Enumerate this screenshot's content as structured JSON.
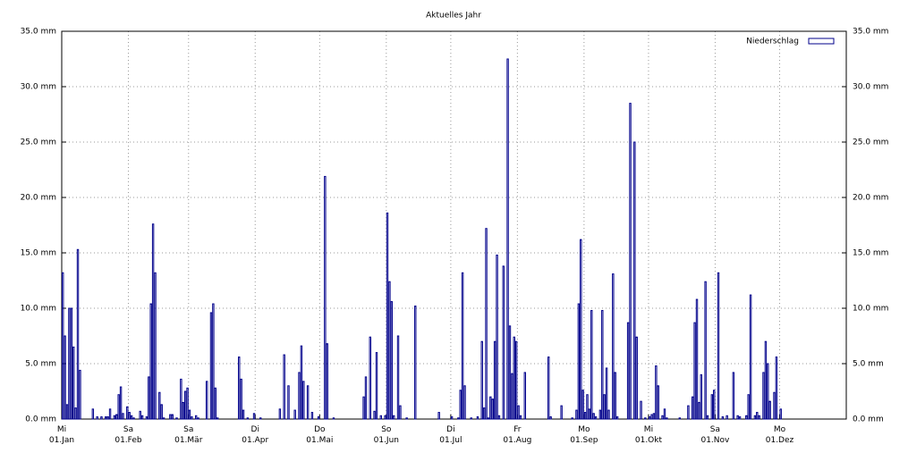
{
  "chart_data": {
    "type": "bar",
    "title": "Aktuelles Jahr",
    "xlim": [
      0,
      365
    ],
    "xticks": [
      {
        "value": 0,
        "label": "Mi\n01.Jan"
      },
      {
        "value": 31,
        "label": "Sa\n01.Feb"
      },
      {
        "value": 59,
        "label": "Sa\n01.Mär"
      },
      {
        "value": 90,
        "label": "Di\n01.Apr"
      },
      {
        "value": 120,
        "label": "Do\n01.Mai"
      },
      {
        "value": 151,
        "label": "So\n01.Jun"
      },
      {
        "value": 181,
        "label": "Di\n01.Jul"
      },
      {
        "value": 212,
        "label": "Fr\n01.Aug"
      },
      {
        "value": 243,
        "label": "Mo\n01.Sep"
      },
      {
        "value": 273,
        "label": "Mi\n01.Okt"
      },
      {
        "value": 304,
        "label": "Sa\n01.Nov"
      },
      {
        "value": 334,
        "label": "Mo\n01.Dez"
      }
    ],
    "ylim": [
      0,
      35
    ],
    "yticks": [
      {
        "value": 0,
        "label": "0.0 mm"
      },
      {
        "value": 5,
        "label": "5.0 mm"
      },
      {
        "value": 10,
        "label": "10.0 mm"
      },
      {
        "value": 15,
        "label": "15.0 mm"
      },
      {
        "value": 20,
        "label": "20.0 mm"
      },
      {
        "value": 25,
        "label": "25.0 mm"
      },
      {
        "value": 30,
        "label": "30.0 mm"
      },
      {
        "value": 35,
        "label": "35.0 mm"
      }
    ],
    "grid": true,
    "legend": "top-right",
    "x": [
      0,
      1,
      2,
      3,
      4,
      5,
      6,
      7,
      8,
      14,
      16,
      18,
      20,
      21,
      22,
      24,
      25,
      26,
      27,
      28,
      30,
      31,
      32,
      33,
      36,
      37,
      39,
      40,
      41,
      42,
      43,
      45,
      46,
      47,
      50,
      51,
      53,
      55,
      56,
      57,
      58,
      59,
      60,
      62,
      63,
      67,
      69,
      70,
      71,
      72,
      82,
      83,
      84,
      86,
      89,
      92,
      101,
      103,
      105,
      108,
      110,
      111,
      112,
      114,
      116,
      119,
      122,
      123,
      126,
      140,
      141,
      143,
      145,
      146,
      148,
      150,
      151,
      152,
      153,
      154,
      156,
      157,
      160,
      164,
      175,
      181,
      184,
      185,
      186,
      187,
      190,
      193,
      195,
      196,
      197,
      198,
      199,
      200,
      201,
      202,
      203,
      205,
      207,
      208,
      209,
      210,
      211,
      212,
      213,
      215,
      226,
      227,
      232,
      237,
      239,
      240,
      241,
      242,
      243,
      244,
      245,
      246,
      247,
      248,
      250,
      251,
      252,
      253,
      254,
      256,
      257,
      258,
      263,
      264,
      266,
      267,
      269,
      271,
      273,
      274,
      275,
      276,
      277,
      279,
      280,
      281,
      287,
      291,
      293,
      294,
      295,
      296,
      297,
      299,
      300,
      302,
      303,
      305,
      307,
      309,
      312,
      314,
      315,
      318,
      319,
      320,
      322,
      323,
      324,
      326,
      327,
      328,
      329,
      331,
      332,
      334
    ],
    "series": [
      {
        "name": "Niederschlag",
        "color": "#00008b",
        "values": [
          13.2,
          7.5,
          1.3,
          10.0,
          10.0,
          6.5,
          1.0,
          15.3,
          4.4,
          0.9,
          0.2,
          0.2,
          0.2,
          0.2,
          0.9,
          0.3,
          0.4,
          2.2,
          2.9,
          0.5,
          1.1,
          0.6,
          0.3,
          0.1,
          0.7,
          0.3,
          0.2,
          3.8,
          10.4,
          17.6,
          13.2,
          2.4,
          1.3,
          0.1,
          0.4,
          0.4,
          0.1,
          3.6,
          1.5,
          2.5,
          2.8,
          0.8,
          0.2,
          0.3,
          0.1,
          3.4,
          9.6,
          10.4,
          2.8,
          0.1,
          5.6,
          3.6,
          0.8,
          0.1,
          0.5,
          0.1,
          0.9,
          5.8,
          3.0,
          0.8,
          4.2,
          6.6,
          3.4,
          3.0,
          0.6,
          0.2,
          21.9,
          6.8,
          0.1,
          2.0,
          3.8,
          7.4,
          0.7,
          6.0,
          0.3,
          0.3,
          18.6,
          12.4,
          10.6,
          0.3,
          7.5,
          1.2,
          0.1,
          10.2,
          0.6,
          0.2,
          0.1,
          2.6,
          13.2,
          3.0,
          0.1,
          0.2,
          7.0,
          1.0,
          17.2,
          0.1,
          2.0,
          1.8,
          7.0,
          14.8,
          0.3,
          13.8,
          32.5,
          8.4,
          4.1,
          7.4,
          7.0,
          1.2,
          0.3,
          4.2,
          5.6,
          0.2,
          1.2,
          0.1,
          0.8,
          10.4,
          16.2,
          2.6,
          0.6,
          2.2,
          0.9,
          9.8,
          0.5,
          0.2,
          0.8,
          9.8,
          2.2,
          4.6,
          0.8,
          13.1,
          4.2,
          0.2,
          8.7,
          28.5,
          25.0,
          7.4,
          1.6,
          0.1,
          0.2,
          0.4,
          0.5,
          4.8,
          3.0,
          0.3,
          0.9,
          0.1,
          0.1,
          1.2,
          2.0,
          8.7,
          10.8,
          1.5,
          4.0,
          12.4,
          0.3,
          2.2,
          2.6,
          13.2,
          0.2,
          0.3,
          4.2,
          0.3,
          0.2,
          0.3,
          2.2,
          11.2,
          0.3,
          0.6,
          0.3,
          4.2,
          7.0,
          5.0,
          1.6,
          2.4,
          5.6,
          0.9
        ]
      }
    ]
  }
}
